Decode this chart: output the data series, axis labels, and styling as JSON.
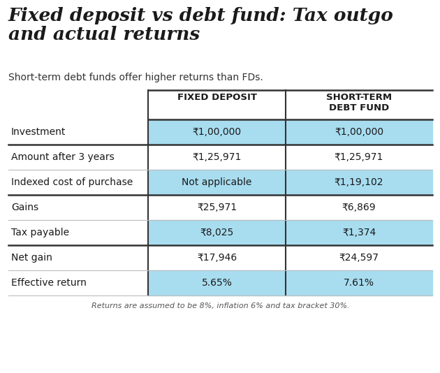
{
  "title": "Fixed deposit vs debt fund: Tax outgo\nand actual returns",
  "subtitle": "Short-term debt funds offer higher returns than FDs.",
  "footnote": "Returns are assumed to be 8%, inflation 6% and tax bracket 30%.",
  "col_headers": [
    "FIXED DEPOSIT",
    "SHORT-TERM\nDEBT FUND"
  ],
  "row_labels": [
    "Investment",
    "Amount after 3 years",
    "Indexed cost of purchase",
    "Gains",
    "Tax payable",
    "Net gain",
    "Effective return"
  ],
  "fd_values": [
    "₹1,00,000",
    "₹1,25,971",
    "Not applicable",
    "₹25,971",
    "₹8,025",
    "₹17,946",
    "5.65%"
  ],
  "debt_values": [
    "₹1,00,000",
    "₹1,25,971",
    "₹1,19,102",
    "₹6,869",
    "₹1,374",
    "₹24,597",
    "7.61%"
  ],
  "highlight_rows": [
    0,
    2,
    4,
    6
  ],
  "thick_dividers_after": [
    0,
    2,
    4
  ],
  "bg_color": "#ffffff",
  "highlight_color": "#a8ddf0",
  "text_color": "#1a1a1a",
  "thick_divider_color": "#333333",
  "thin_divider_color": "#bbbbbb",
  "title_fontsize": 19,
  "subtitle_fontsize": 10,
  "header_fontsize": 9.5,
  "cell_fontsize": 10,
  "footnote_fontsize": 8
}
